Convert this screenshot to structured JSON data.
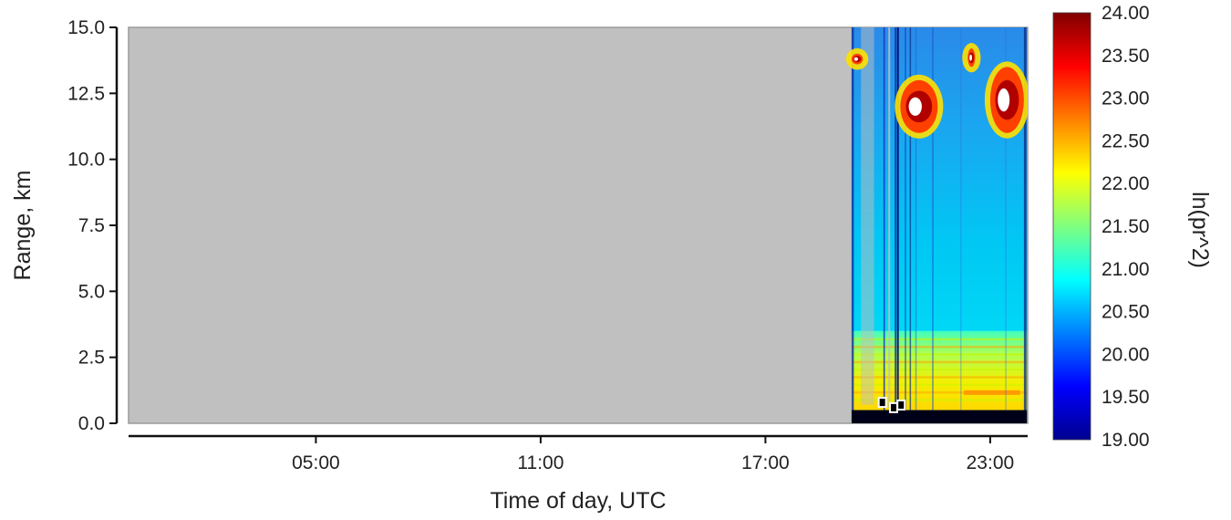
{
  "chart_data": {
    "type": "heatmap",
    "title": "",
    "xlabel": "Time of day, UTC",
    "ylabel": "Range, km",
    "x_ticks": [
      "05:00",
      "11:00",
      "17:00",
      "23:00"
    ],
    "x_tick_hours": [
      5,
      11,
      17,
      23
    ],
    "xlim_hours": [
      0,
      24
    ],
    "y_ticks": [
      "0.0",
      "2.5",
      "5.0",
      "7.5",
      "10.0",
      "12.5",
      "15.0"
    ],
    "ylim": [
      0,
      15
    ],
    "colorbar": {
      "label": "ln(pr^2)",
      "ticks": [
        "19.00",
        "19.50",
        "20.00",
        "20.50",
        "21.00",
        "21.50",
        "22.00",
        "22.50",
        "23.00",
        "23.50",
        "24.00"
      ],
      "range": [
        19,
        24
      ],
      "colormap": "jet"
    },
    "no_data_color": "#c0c0c0",
    "data_coverage_hours": [
      19.3,
      23.98
    ],
    "features": {
      "near_surface_dead_zone_km": [
        0,
        0.5
      ],
      "boundary_layer_top_km": 3.5,
      "cirrus_clouds": [
        {
          "start_hour": 20.6,
          "end_hour": 21.6,
          "base_km": 11.0,
          "top_km": 13.0
        },
        {
          "start_hour": 23.0,
          "end_hour": 23.9,
          "base_km": 11.0,
          "top_km": 13.5
        },
        {
          "start_hour": 22.4,
          "end_hour": 22.6,
          "base_km": 13.5,
          "top_km": 14.2
        },
        {
          "start_hour": 19.3,
          "end_hour": 19.6,
          "base_km": 13.6,
          "top_km": 14.0
        }
      ]
    }
  }
}
